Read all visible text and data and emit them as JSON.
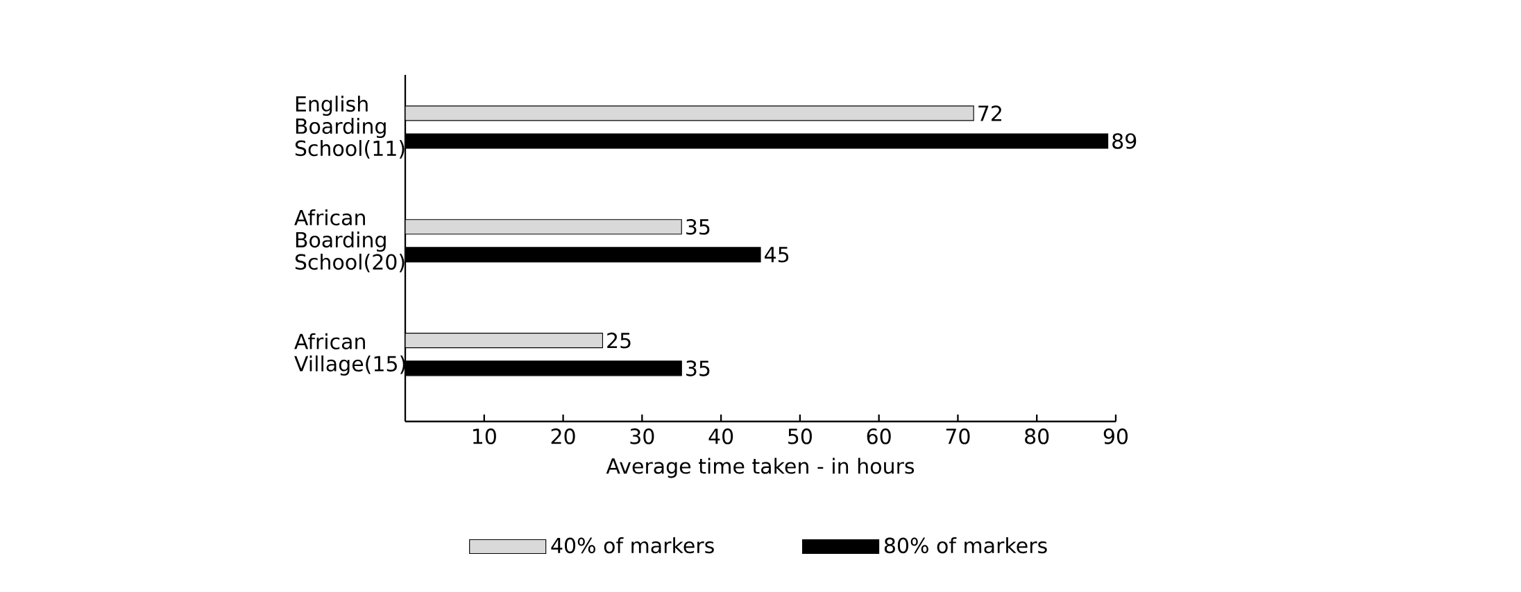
{
  "chart_data": {
    "type": "bar",
    "orientation": "horizontal",
    "xlabel": "Average time taken  -  in hours",
    "categories": [
      "English Boarding School(11)",
      "African Boarding School(20)",
      "African Village(15)"
    ],
    "series": [
      {
        "name": "40% of markers",
        "color": "#d9d9d9",
        "values": [
          72,
          35,
          25
        ]
      },
      {
        "name": "80% of markers",
        "color": "#000000",
        "values": [
          89,
          45,
          35
        ]
      }
    ],
    "xlim": [
      0,
      90
    ],
    "xticks": [
      10,
      20,
      30,
      40,
      50,
      60,
      70,
      80,
      90
    ],
    "data_labels": true,
    "grid": false,
    "legend": "bottom"
  }
}
